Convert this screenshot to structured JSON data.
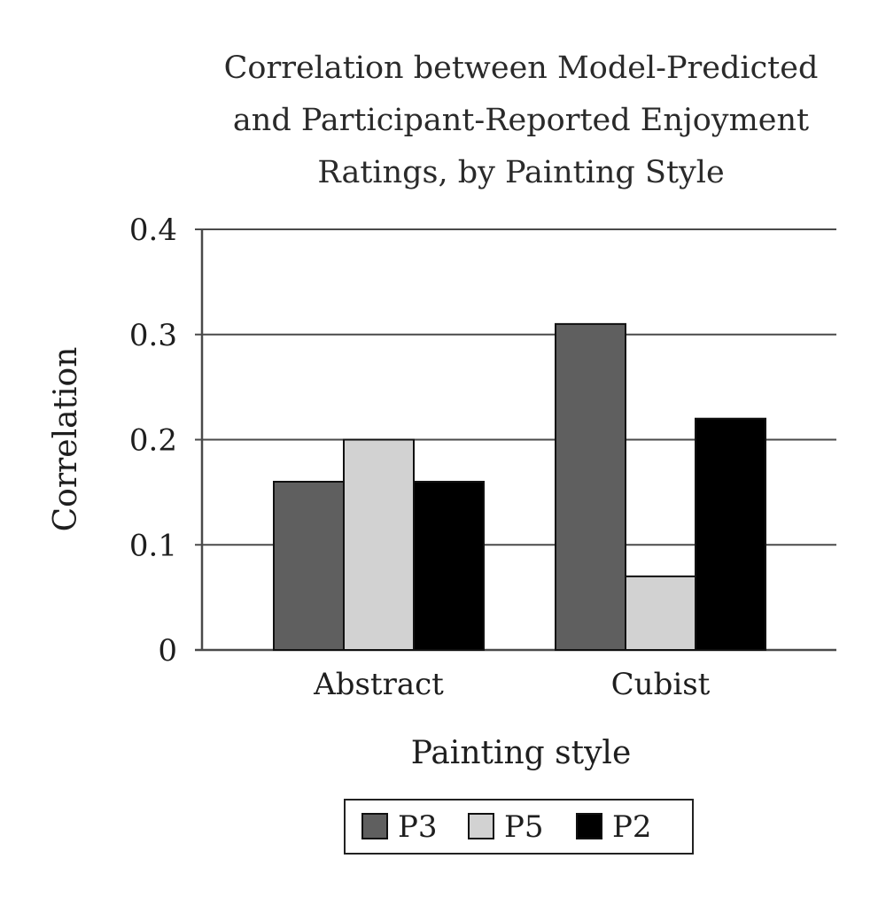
{
  "chart_data": {
    "type": "bar",
    "title_lines": [
      "Correlation between Model-Predicted",
      "and Participant-Reported Enjoyment",
      "Ratings, by Painting Style"
    ],
    "xlabel": "Painting style",
    "ylabel": "Correlation",
    "categories": [
      "Abstract",
      "Cubist"
    ],
    "series": [
      {
        "name": "P3",
        "values": [
          0.16,
          0.31
        ],
        "color": "#5f5f5f"
      },
      {
        "name": "P5",
        "values": [
          0.2,
          0.07
        ],
        "color": "#d2d2d2"
      },
      {
        "name": "P2",
        "values": [
          0.16,
          0.22
        ],
        "color": "#000000"
      }
    ],
    "ylim": [
      0,
      0.4
    ],
    "yticks": [
      0,
      0.1,
      0.2,
      0.3,
      0.4
    ],
    "ytick_labels": [
      "0",
      "0.1",
      "0.2",
      "0.3",
      "0.4"
    ],
    "grid": true,
    "legend_position": "bottom-center"
  }
}
